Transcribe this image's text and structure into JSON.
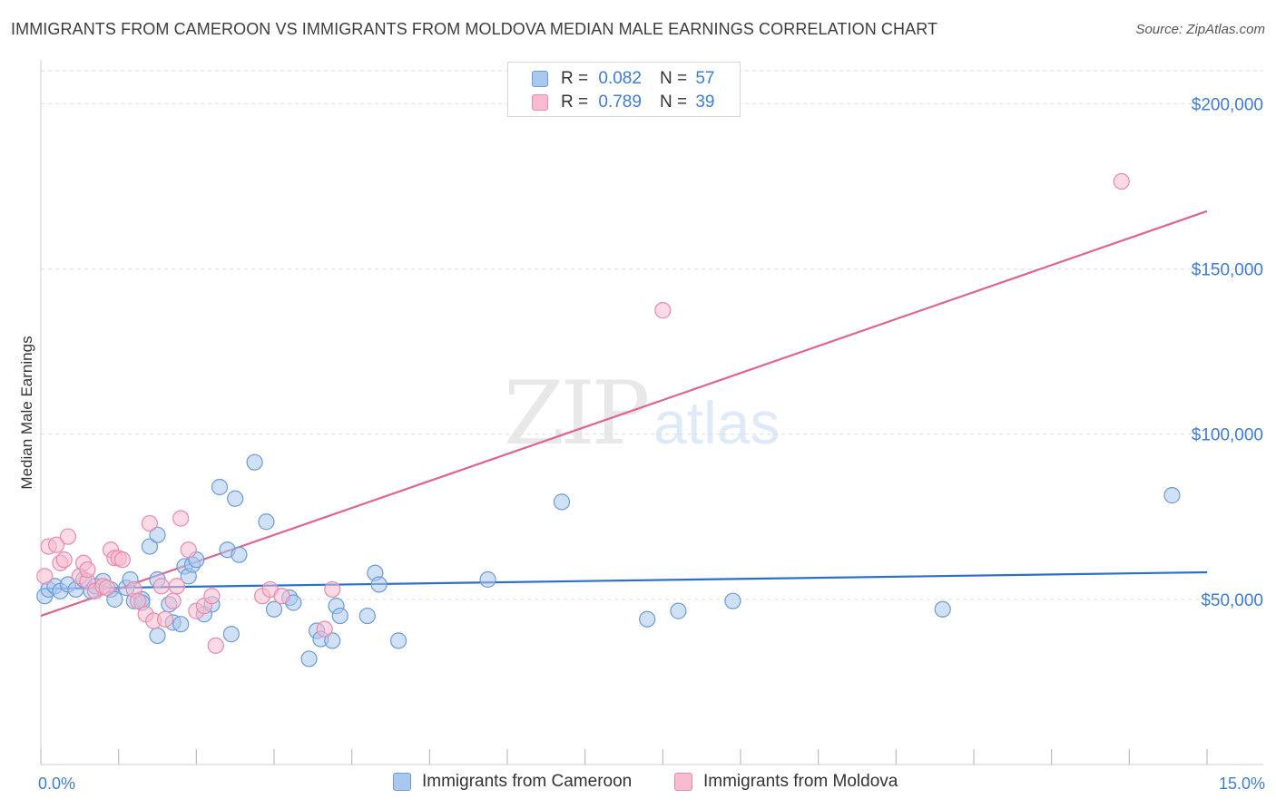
{
  "header": {
    "title": "IMMIGRANTS FROM CAMEROON VS IMMIGRANTS FROM MOLDOVA MEDIAN MALE EARNINGS CORRELATION CHART",
    "source": "Source: ZipAtlas.com"
  },
  "watermark": {
    "zip": "ZIP",
    "atlas": "atlas"
  },
  "legend": {
    "cameroon": {
      "r_label": "R =",
      "r_value": "0.082",
      "n_label": "N =",
      "n_value": "57"
    },
    "moldova": {
      "r_label": "R =",
      "r_value": "0.789",
      "n_label": "N =",
      "n_value": "39"
    }
  },
  "bottom_legend": {
    "cameroon": "Immigrants from Cameroon",
    "moldova": "Immigrants from Moldova"
  },
  "colors": {
    "cameroon_fill": "#aac8ee",
    "cameroon_stroke": "#6b9bd8",
    "cameroon_line": "#2b6fcc",
    "moldova_fill": "#f7bcd0",
    "moldova_stroke": "#e88aab",
    "moldova_line": "#e0648f",
    "tick_text": "#3f7dd0",
    "grid": "#dedede"
  },
  "chart_data": {
    "type": "scatter",
    "title": "IMMIGRANTS FROM CAMEROON VS IMMIGRANTS FROM MOLDOVA MEDIAN MALE EARNINGS CORRELATION CHART",
    "xlabel": "",
    "ylabel": "Median Male Earnings",
    "xlim": [
      0,
      15
    ],
    "ylim": [
      0,
      210000
    ],
    "x_tick_labels": [
      {
        "value": 0,
        "label": "0.0%"
      },
      {
        "value": 15,
        "label": "15.0%"
      }
    ],
    "y_tick_labels": [
      {
        "value": 50000,
        "label": "$50,000"
      },
      {
        "value": 100000,
        "label": "$100,000"
      },
      {
        "value": 150000,
        "label": "$150,000"
      },
      {
        "value": 200000,
        "label": "$200,000"
      }
    ],
    "series": [
      {
        "name": "Immigrants from Cameroon",
        "color_key": "cameroon",
        "trend": {
          "x": [
            0,
            15
          ],
          "y": [
            53200,
            58200
          ]
        },
        "points": [
          [
            0.05,
            51000
          ],
          [
            0.1,
            53000
          ],
          [
            0.18,
            54000
          ],
          [
            0.25,
            52500
          ],
          [
            0.35,
            54500
          ],
          [
            0.45,
            53000
          ],
          [
            0.55,
            56000
          ],
          [
            0.65,
            52500
          ],
          [
            0.7,
            54000
          ],
          [
            0.8,
            55500
          ],
          [
            0.9,
            53000
          ],
          [
            0.95,
            50000
          ],
          [
            1.1,
            53500
          ],
          [
            1.15,
            56000
          ],
          [
            1.2,
            49500
          ],
          [
            1.3,
            50000
          ],
          [
            1.3,
            49000
          ],
          [
            1.4,
            66000
          ],
          [
            1.5,
            39000
          ],
          [
            1.5,
            56000
          ],
          [
            1.5,
            69500
          ],
          [
            1.65,
            48500
          ],
          [
            1.7,
            43000
          ],
          [
            1.8,
            42500
          ],
          [
            1.85,
            60000
          ],
          [
            1.9,
            57000
          ],
          [
            1.95,
            60500
          ],
          [
            2.0,
            62000
          ],
          [
            2.1,
            45500
          ],
          [
            2.2,
            48500
          ],
          [
            2.3,
            84000
          ],
          [
            2.4,
            65000
          ],
          [
            2.45,
            39500
          ],
          [
            2.5,
            80500
          ],
          [
            2.55,
            63500
          ],
          [
            2.75,
            91500
          ],
          [
            2.9,
            73500
          ],
          [
            3.0,
            47000
          ],
          [
            3.2,
            50500
          ],
          [
            3.25,
            49000
          ],
          [
            3.45,
            32000
          ],
          [
            3.55,
            40500
          ],
          [
            3.6,
            38000
          ],
          [
            3.75,
            37500
          ],
          [
            3.8,
            48000
          ],
          [
            3.85,
            45000
          ],
          [
            4.2,
            45000
          ],
          [
            4.3,
            58000
          ],
          [
            4.35,
            54500
          ],
          [
            4.6,
            37500
          ],
          [
            5.75,
            56000
          ],
          [
            6.7,
            79500
          ],
          [
            7.8,
            44000
          ],
          [
            8.2,
            46500
          ],
          [
            8.9,
            49500
          ],
          [
            11.6,
            47000
          ],
          [
            14.55,
            81500
          ]
        ]
      },
      {
        "name": "Immigrants from Moldova",
        "color_key": "moldova",
        "trend": {
          "x": [
            0,
            15
          ],
          "y": [
            45000,
            167500
          ]
        },
        "points": [
          [
            0.05,
            57000
          ],
          [
            0.1,
            66000
          ],
          [
            0.2,
            66500
          ],
          [
            0.25,
            61000
          ],
          [
            0.3,
            62000
          ],
          [
            0.35,
            69000
          ],
          [
            0.5,
            57000
          ],
          [
            0.55,
            61000
          ],
          [
            0.6,
            55500
          ],
          [
            0.6,
            59000
          ],
          [
            0.7,
            52500
          ],
          [
            0.8,
            54000
          ],
          [
            0.85,
            53500
          ],
          [
            0.9,
            65000
          ],
          [
            0.95,
            62500
          ],
          [
            1.0,
            62500
          ],
          [
            1.05,
            62000
          ],
          [
            1.2,
            53000
          ],
          [
            1.25,
            49500
          ],
          [
            1.35,
            45500
          ],
          [
            1.4,
            73000
          ],
          [
            1.45,
            43500
          ],
          [
            1.55,
            54000
          ],
          [
            1.6,
            44000
          ],
          [
            1.7,
            49500
          ],
          [
            1.75,
            54000
          ],
          [
            1.8,
            74500
          ],
          [
            1.9,
            65000
          ],
          [
            2.0,
            46500
          ],
          [
            2.1,
            48000
          ],
          [
            2.2,
            51000
          ],
          [
            2.25,
            36000
          ],
          [
            2.85,
            51000
          ],
          [
            2.95,
            53000
          ],
          [
            3.1,
            51000
          ],
          [
            3.65,
            41000
          ],
          [
            3.75,
            53000
          ],
          [
            8.0,
            137500
          ],
          [
            13.9,
            176500
          ]
        ]
      }
    ]
  },
  "axes": {
    "ylabel": "Median Male Earnings"
  }
}
